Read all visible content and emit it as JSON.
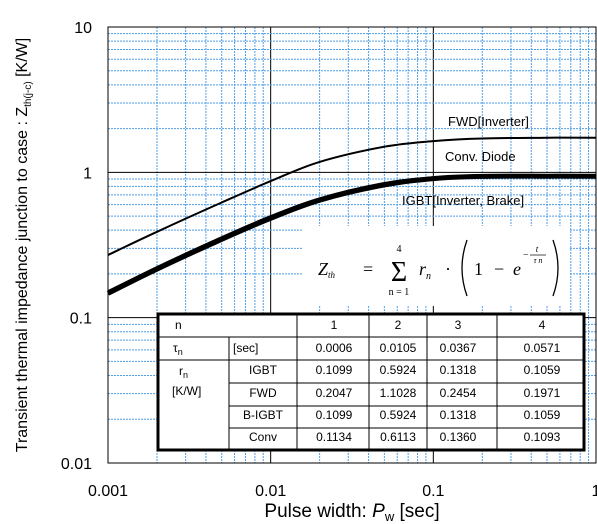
{
  "chart_data": {
    "type": "line",
    "x_scale": "log",
    "y_scale": "log",
    "xlim": [
      0.001,
      1
    ],
    "ylim": [
      0.01,
      10
    ],
    "xticks": [
      "0.001",
      "0.01",
      "0.1",
      "1"
    ],
    "yticks": [
      "0.01",
      "0.1",
      "1",
      "10"
    ],
    "xlabel": "Pulse width: ",
    "xlabel_symbol": "P",
    "xlabel_sub": "w",
    "xlabel_unit": " [sec]",
    "ylabel": "Transient thermal impedance junction to case  : Z",
    "ylabel_sub": "th(j-c)",
    "ylabel_unit": "  [K/W]",
    "grid": true,
    "series": [
      {
        "name": "FWD[Inverter]",
        "x": [
          0.001,
          0.002,
          0.005,
          0.01,
          0.02,
          0.05,
          0.1,
          0.2,
          0.5,
          1
        ],
        "y": [
          0.27,
          0.39,
          0.62,
          0.87,
          1.18,
          1.5,
          1.64,
          1.71,
          1.73,
          1.73
        ]
      },
      {
        "name": "Conv. Diode",
        "x": [
          0.001,
          0.002,
          0.005,
          0.01,
          0.02,
          0.05,
          0.1,
          0.2,
          0.5,
          1
        ],
        "y": [
          0.152,
          0.223,
          0.358,
          0.5,
          0.663,
          0.844,
          0.923,
          0.95,
          0.952,
          0.952
        ]
      },
      {
        "name": "IGBT[Inverter, Brake]",
        "x": [
          0.001,
          0.002,
          0.005,
          0.01,
          0.02,
          0.05,
          0.1,
          0.2,
          0.5,
          1
        ],
        "y": [
          0.147,
          0.216,
          0.346,
          0.483,
          0.643,
          0.82,
          0.906,
          0.938,
          0.941,
          0.941
        ]
      }
    ],
    "equation": {
      "lhs": "Z",
      "lhs_sub": "th",
      "eq": "=",
      "sum_top": "4",
      "sum_bottom": "n = 1",
      "r": "r",
      "r_sub": "n",
      "dot": "·",
      "one": "1",
      "minus": "−",
      "e": "e",
      "exp_minus": "−",
      "exp_num": "t",
      "exp_den": "τ n"
    },
    "table": {
      "header": [
        "n",
        "1",
        "2",
        "3",
        "4"
      ],
      "tau_label": "τ",
      "tau_sub": "n",
      "tau_unit": "[sec]",
      "tau_values": [
        "0.0006",
        "0.0105",
        "0.0367",
        "0.0571"
      ],
      "r_label": "r",
      "r_sub": "n",
      "r_unit": "[K/W]",
      "rows": [
        {
          "label": "IGBT",
          "values": [
            "0.1099",
            "0.5924",
            "0.1318",
            "0.1059"
          ]
        },
        {
          "label": "FWD",
          "values": [
            "0.2047",
            "1.1028",
            "0.2454",
            "0.1971"
          ]
        },
        {
          "label": "B-IGBT",
          "values": [
            "0.1099",
            "0.5924",
            "0.1318",
            "0.1059"
          ]
        },
        {
          "label": "Conv",
          "values": [
            "0.1134",
            "0.6113",
            "0.1360",
            "0.1093"
          ]
        }
      ]
    }
  }
}
